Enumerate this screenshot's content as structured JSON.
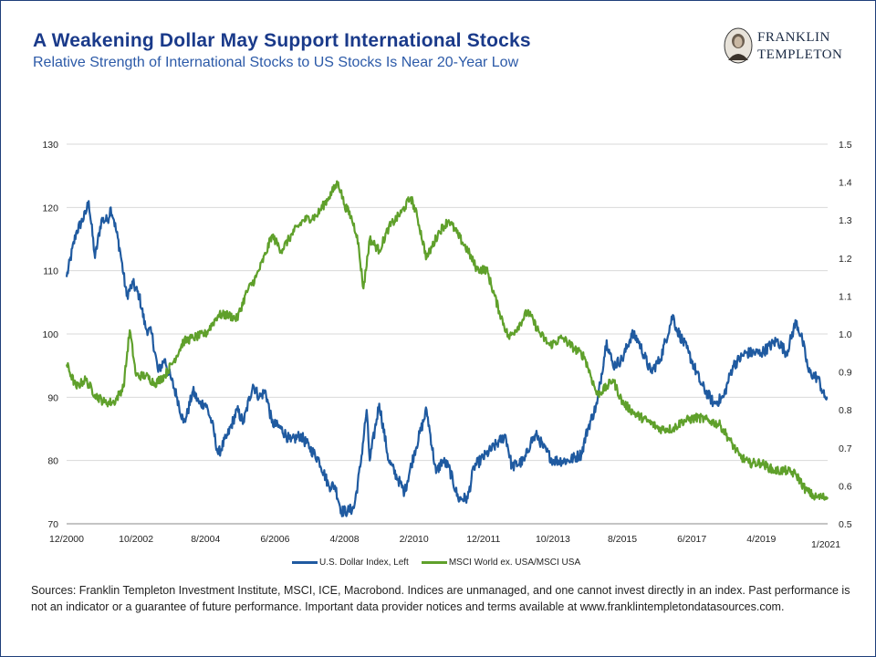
{
  "header": {
    "title": "A Weakening Dollar May Support International Stocks",
    "subtitle": "Relative Strength of International Stocks to US Stocks Is Near 20-Year Low",
    "logo_line1": "FRANKLIN",
    "logo_line2": "TEMPLETON"
  },
  "colors": {
    "usd": "#1f5aa0",
    "msci": "#5fa02b",
    "title": "#1a3a8a",
    "grid": "#d9d9d9"
  },
  "footer": {
    "sources": "Sources: Franklin Templeton Investment Institute, MSCI, ICE, Macrobond. Indices are unmanaged, and one cannot invest directly in an index. Past performance is not an indicator or a guarantee of future performance. Important data provider notices and terms available at www.franklintempletondatasources.com."
  },
  "chart_data": {
    "type": "line",
    "title": "A Weakening Dollar May Support International Stocks",
    "subtitle": "Relative Strength of International Stocks to US Stocks Is Near 20-Year Low",
    "x_ticks": [
      "12/2000",
      "10/2002",
      "8/2004",
      "6/2006",
      "4/2008",
      "2/2010",
      "12/2011",
      "10/2013",
      "8/2015",
      "6/2017",
      "4/2019",
      "1/2021"
    ],
    "y_left": {
      "ylim": [
        70,
        130
      ],
      "ticks": [
        70,
        80,
        90,
        100,
        110,
        120,
        130
      ]
    },
    "y_right": {
      "ylim": [
        0.5,
        1.5
      ],
      "ticks": [
        "0.5",
        "0.6",
        "0.7",
        "0.8",
        "0.9",
        "1.0",
        "1.1",
        "1.2",
        "1.3",
        "1.4",
        "1.5"
      ]
    },
    "grid": "horizontal",
    "legend_position": "bottom",
    "series": [
      {
        "name": "U.S. Dollar Index, Left",
        "axis": "left",
        "color": "#1f5aa0",
        "points": [
          [
            "2000-12",
            109
          ],
          [
            "2001-03",
            116
          ],
          [
            "2001-06",
            119
          ],
          [
            "2001-07",
            121
          ],
          [
            "2001-09",
            112
          ],
          [
            "2001-11",
            118
          ],
          [
            "2002-01",
            118
          ],
          [
            "2002-02",
            120
          ],
          [
            "2002-03",
            118
          ],
          [
            "2002-05",
            113
          ],
          [
            "2002-07",
            106
          ],
          [
            "2002-09",
            108
          ],
          [
            "2002-11",
            106
          ],
          [
            "2003-01",
            101
          ],
          [
            "2003-03",
            100
          ],
          [
            "2003-05",
            94
          ],
          [
            "2003-07",
            96
          ],
          [
            "2003-09",
            93
          ],
          [
            "2003-11",
            90
          ],
          [
            "2004-01",
            86
          ],
          [
            "2004-02",
            87
          ],
          [
            "2004-04",
            91
          ],
          [
            "2004-06",
            89
          ],
          [
            "2004-08",
            89
          ],
          [
            "2004-10",
            86
          ],
          [
            "2004-12",
            81
          ],
          [
            "2005-03",
            84
          ],
          [
            "2005-06",
            88
          ],
          [
            "2005-08",
            86
          ],
          [
            "2005-11",
            92
          ],
          [
            "2006-01",
            90
          ],
          [
            "2006-03",
            91
          ],
          [
            "2006-05",
            86
          ],
          [
            "2006-08",
            85
          ],
          [
            "2006-11",
            83
          ],
          [
            "2007-02",
            84
          ],
          [
            "2007-05",
            82
          ],
          [
            "2007-08",
            80
          ],
          [
            "2007-11",
            76
          ],
          [
            "2008-01",
            76
          ],
          [
            "2008-03",
            72
          ],
          [
            "2008-05",
            72
          ],
          [
            "2008-07",
            72.5
          ],
          [
            "2008-09",
            79
          ],
          [
            "2008-11",
            88
          ],
          [
            "2008-12",
            80
          ],
          [
            "2009-03",
            89
          ],
          [
            "2009-06",
            80
          ],
          [
            "2009-09",
            77
          ],
          [
            "2009-11",
            75
          ],
          [
            "2010-02",
            81
          ],
          [
            "2010-06",
            88
          ],
          [
            "2010-09",
            78
          ],
          [
            "2010-11",
            80
          ],
          [
            "2011-01",
            79
          ],
          [
            "2011-04",
            74
          ],
          [
            "2011-07",
            74
          ],
          [
            "2011-09",
            79
          ],
          [
            "2012-01",
            81
          ],
          [
            "2012-05",
            83
          ],
          [
            "2012-07",
            84
          ],
          [
            "2012-09",
            79
          ],
          [
            "2013-01",
            80
          ],
          [
            "2013-03",
            83
          ],
          [
            "2013-05",
            84
          ],
          [
            "2013-07",
            82
          ],
          [
            "2013-10",
            80
          ],
          [
            "2014-03",
            80
          ],
          [
            "2014-07",
            81
          ],
          [
            "2014-09",
            85
          ],
          [
            "2014-12",
            89
          ],
          [
            "2015-03",
            99
          ],
          [
            "2015-05",
            95
          ],
          [
            "2015-08",
            96
          ],
          [
            "2015-11",
            100
          ],
          [
            "2016-01",
            99
          ],
          [
            "2016-05",
            94
          ],
          [
            "2016-08",
            96
          ],
          [
            "2016-12",
            103
          ],
          [
            "2017-01",
            101
          ],
          [
            "2017-05",
            97
          ],
          [
            "2017-09",
            92
          ],
          [
            "2018-01",
            89
          ],
          [
            "2018-04",
            90
          ],
          [
            "2018-07",
            95
          ],
          [
            "2018-11",
            97
          ],
          [
            "2019-04",
            97
          ],
          [
            "2019-09",
            99
          ],
          [
            "2019-12",
            97
          ],
          [
            "2020-03",
            102
          ],
          [
            "2020-05",
            99
          ],
          [
            "2020-07",
            94
          ],
          [
            "2020-10",
            93
          ],
          [
            "2020-12",
            90
          ],
          [
            "2021-01",
            90
          ]
        ]
      },
      {
        "name": "MSCI World ex. USA/MSCI USA",
        "axis": "right",
        "color": "#5fa02b",
        "points": [
          [
            "2000-12",
            0.92
          ],
          [
            "2001-03",
            0.86
          ],
          [
            "2001-06",
            0.88
          ],
          [
            "2001-09",
            0.84
          ],
          [
            "2001-12",
            0.82
          ],
          [
            "2002-03",
            0.82
          ],
          [
            "2002-06",
            0.86
          ],
          [
            "2002-08",
            1.01
          ],
          [
            "2002-10",
            0.89
          ],
          [
            "2003-01",
            0.89
          ],
          [
            "2003-04",
            0.87
          ],
          [
            "2003-07",
            0.89
          ],
          [
            "2003-10",
            0.93
          ],
          [
            "2004-01",
            0.98
          ],
          [
            "2004-04",
            0.99
          ],
          [
            "2004-08",
            1.0
          ],
          [
            "2004-12",
            1.05
          ],
          [
            "2005-03",
            1.05
          ],
          [
            "2005-06",
            1.04
          ],
          [
            "2005-09",
            1.11
          ],
          [
            "2005-12",
            1.15
          ],
          [
            "2006-03",
            1.21
          ],
          [
            "2006-05",
            1.26
          ],
          [
            "2006-08",
            1.22
          ],
          [
            "2006-12",
            1.27
          ],
          [
            "2007-03",
            1.3
          ],
          [
            "2007-07",
            1.31
          ],
          [
            "2007-11",
            1.36
          ],
          [
            "2008-02",
            1.4
          ],
          [
            "2008-04",
            1.34
          ],
          [
            "2008-06",
            1.31
          ],
          [
            "2008-08",
            1.26
          ],
          [
            "2008-10",
            1.12
          ],
          [
            "2008-12",
            1.25
          ],
          [
            "2009-03",
            1.22
          ],
          [
            "2009-06",
            1.28
          ],
          [
            "2009-10",
            1.32
          ],
          [
            "2010-01",
            1.36
          ],
          [
            "2010-03",
            1.31
          ],
          [
            "2010-06",
            1.2
          ],
          [
            "2010-10",
            1.27
          ],
          [
            "2011-01",
            1.3
          ],
          [
            "2011-04",
            1.26
          ],
          [
            "2011-07",
            1.22
          ],
          [
            "2011-10",
            1.17
          ],
          [
            "2012-01",
            1.17
          ],
          [
            "2012-05",
            1.06
          ],
          [
            "2012-08",
            0.99
          ],
          [
            "2012-11",
            1.02
          ],
          [
            "2013-02",
            1.06
          ],
          [
            "2013-06",
            1.0
          ],
          [
            "2013-09",
            0.97
          ],
          [
            "2014-01",
            0.99
          ],
          [
            "2014-05",
            0.96
          ],
          [
            "2014-08",
            0.94
          ],
          [
            "2014-12",
            0.84
          ],
          [
            "2015-03",
            0.86
          ],
          [
            "2015-05",
            0.88
          ],
          [
            "2015-08",
            0.82
          ],
          [
            "2015-12",
            0.79
          ],
          [
            "2016-04",
            0.77
          ],
          [
            "2016-08",
            0.75
          ],
          [
            "2016-12",
            0.75
          ],
          [
            "2017-03",
            0.77
          ],
          [
            "2017-08",
            0.78
          ],
          [
            "2017-12",
            0.77
          ],
          [
            "2018-03",
            0.76
          ],
          [
            "2018-06",
            0.72
          ],
          [
            "2018-09",
            0.68
          ],
          [
            "2018-12",
            0.66
          ],
          [
            "2019-04",
            0.66
          ],
          [
            "2019-08",
            0.64
          ],
          [
            "2019-12",
            0.64
          ],
          [
            "2020-03",
            0.63
          ],
          [
            "2020-06",
            0.59
          ],
          [
            "2020-09",
            0.57
          ],
          [
            "2020-11",
            0.57
          ],
          [
            "2021-01",
            0.57
          ]
        ]
      }
    ]
  }
}
